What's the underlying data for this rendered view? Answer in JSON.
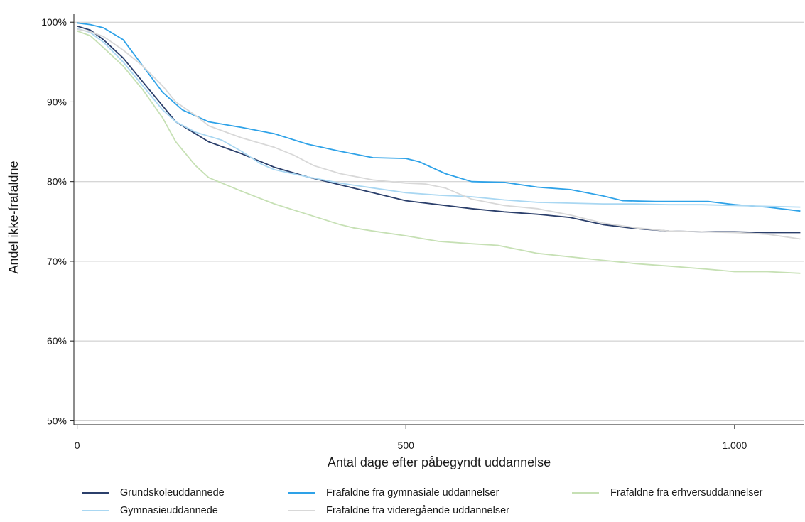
{
  "chart_data": {
    "type": "line",
    "xlabel": "Antal dage efter påbegyndt uddannelse",
    "ylabel": "Andel ikke-frafaldne",
    "xlim": [
      -5,
      1105
    ],
    "ylim": [
      49.5,
      101
    ],
    "x_ticks": [
      0,
      500,
      1000
    ],
    "x_tick_labels": [
      "0",
      "500",
      "1.000"
    ],
    "y_ticks": [
      50,
      60,
      70,
      80,
      90,
      100
    ],
    "y_tick_labels": [
      "50%",
      "60%",
      "70%",
      "80%",
      "90%",
      "100%"
    ],
    "grid": "horizontal",
    "legend_position": "bottom",
    "series": [
      {
        "name": "Grundskoleuddannede",
        "color": "#2b3f6b",
        "points": [
          [
            0,
            99.5
          ],
          [
            20,
            99
          ],
          [
            40,
            97.8
          ],
          [
            70,
            95.5
          ],
          [
            100,
            92.5
          ],
          [
            130,
            89.5
          ],
          [
            150,
            87.5
          ],
          [
            180,
            86
          ],
          [
            200,
            85
          ],
          [
            250,
            83.5
          ],
          [
            300,
            81.8
          ],
          [
            350,
            80.6
          ],
          [
            400,
            79.6
          ],
          [
            450,
            78.6
          ],
          [
            500,
            77.6
          ],
          [
            550,
            77.1
          ],
          [
            600,
            76.6
          ],
          [
            650,
            76.2
          ],
          [
            700,
            75.9
          ],
          [
            750,
            75.5
          ],
          [
            800,
            74.6
          ],
          [
            850,
            74.1
          ],
          [
            900,
            73.8
          ],
          [
            950,
            73.7
          ],
          [
            1000,
            73.7
          ],
          [
            1050,
            73.6
          ],
          [
            1100,
            73.6
          ]
        ]
      },
      {
        "name": "Frafaldne fra gymnasiale uddannelser",
        "color": "#2ea2e8",
        "points": [
          [
            0,
            99.9
          ],
          [
            20,
            99.7
          ],
          [
            40,
            99.3
          ],
          [
            70,
            97.8
          ],
          [
            100,
            94.5
          ],
          [
            130,
            91.2
          ],
          [
            160,
            89
          ],
          [
            200,
            87.5
          ],
          [
            250,
            86.8
          ],
          [
            300,
            86
          ],
          [
            350,
            84.7
          ],
          [
            400,
            83.8
          ],
          [
            450,
            83
          ],
          [
            500,
            82.9
          ],
          [
            520,
            82.5
          ],
          [
            560,
            81
          ],
          [
            600,
            80
          ],
          [
            650,
            79.9
          ],
          [
            700,
            79.3
          ],
          [
            750,
            79
          ],
          [
            800,
            78.2
          ],
          [
            830,
            77.6
          ],
          [
            880,
            77.5
          ],
          [
            960,
            77.5
          ],
          [
            1000,
            77.1
          ],
          [
            1050,
            76.8
          ],
          [
            1100,
            76.3
          ]
        ]
      },
      {
        "name": "Frafaldne fra erhversuddannelser",
        "color": "#c6e0b4",
        "points": [
          [
            0,
            98.9
          ],
          [
            20,
            98.3
          ],
          [
            40,
            96.8
          ],
          [
            70,
            94.5
          ],
          [
            100,
            91.5
          ],
          [
            130,
            88
          ],
          [
            150,
            85
          ],
          [
            180,
            82
          ],
          [
            200,
            80.5
          ],
          [
            250,
            78.8
          ],
          [
            300,
            77.2
          ],
          [
            350,
            75.9
          ],
          [
            400,
            74.6
          ],
          [
            420,
            74.2
          ],
          [
            450,
            73.8
          ],
          [
            500,
            73.2
          ],
          [
            550,
            72.5
          ],
          [
            600,
            72.2
          ],
          [
            640,
            72
          ],
          [
            700,
            71
          ],
          [
            780,
            70.3
          ],
          [
            850,
            69.7
          ],
          [
            900,
            69.4
          ],
          [
            960,
            69
          ],
          [
            1000,
            68.7
          ],
          [
            1050,
            68.7
          ],
          [
            1100,
            68.5
          ]
        ]
      },
      {
        "name": "Gymnasieuddannede",
        "color": "#a9d7f2",
        "points": [
          [
            0,
            99.2
          ],
          [
            20,
            98.7
          ],
          [
            40,
            97.5
          ],
          [
            70,
            95
          ],
          [
            100,
            92
          ],
          [
            130,
            89
          ],
          [
            150,
            87.5
          ],
          [
            180,
            86.2
          ],
          [
            220,
            85.2
          ],
          [
            250,
            83.8
          ],
          [
            280,
            82.2
          ],
          [
            300,
            81.5
          ],
          [
            350,
            80.6
          ],
          [
            400,
            79.8
          ],
          [
            450,
            79.2
          ],
          [
            500,
            78.6
          ],
          [
            550,
            78.3
          ],
          [
            600,
            78.1
          ],
          [
            650,
            77.7
          ],
          [
            700,
            77.4
          ],
          [
            750,
            77.3
          ],
          [
            800,
            77.2
          ],
          [
            850,
            77.2
          ],
          [
            900,
            77.1
          ],
          [
            950,
            77.1
          ],
          [
            1000,
            77
          ],
          [
            1050,
            76.9
          ],
          [
            1100,
            76.8
          ]
        ]
      },
      {
        "name": "Frafaldne fra videregående uddannelser",
        "color": "#d8d8d8",
        "points": [
          [
            0,
            99.1
          ],
          [
            20,
            98.8
          ],
          [
            40,
            98.2
          ],
          [
            70,
            96.5
          ],
          [
            100,
            94.5
          ],
          [
            130,
            92
          ],
          [
            150,
            90
          ],
          [
            180,
            88.3
          ],
          [
            200,
            87
          ],
          [
            250,
            85.5
          ],
          [
            300,
            84.3
          ],
          [
            330,
            83.3
          ],
          [
            360,
            82
          ],
          [
            400,
            81
          ],
          [
            450,
            80.2
          ],
          [
            500,
            79.8
          ],
          [
            530,
            79.7
          ],
          [
            560,
            79.2
          ],
          [
            600,
            77.8
          ],
          [
            650,
            77
          ],
          [
            700,
            76.6
          ],
          [
            750,
            75.8
          ],
          [
            800,
            74.8
          ],
          [
            850,
            74.2
          ],
          [
            900,
            73.8
          ],
          [
            950,
            73.7
          ],
          [
            1000,
            73.6
          ],
          [
            1050,
            73.4
          ],
          [
            1100,
            72.8
          ]
        ]
      }
    ],
    "legend_layout": [
      [
        "Grundskoleuddannede",
        "Frafaldne fra gymnasiale uddannelser",
        "Frafaldne fra erhversuddannelser"
      ],
      [
        "Gymnasieuddannede",
        "Frafaldne fra videregående uddannelser"
      ]
    ]
  }
}
